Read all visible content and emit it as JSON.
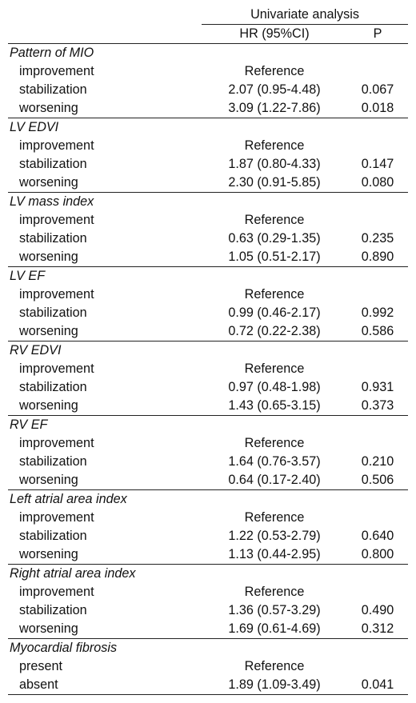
{
  "header": {
    "span_title": "Univariate analysis",
    "col_hr": "HR (95%CI)",
    "col_p": "P"
  },
  "groups": [
    {
      "name": "Pattern of MIO",
      "rows": [
        {
          "label": "improvement",
          "hr": "Reference",
          "p": ""
        },
        {
          "label": "stabilization",
          "hr": "2.07 (0.95-4.48)",
          "p": "0.067"
        },
        {
          "label": "worsening",
          "hr": "3.09 (1.22-7.86)",
          "p": "0.018"
        }
      ]
    },
    {
      "name": "LV EDVI",
      "rows": [
        {
          "label": "improvement",
          "hr": "Reference",
          "p": ""
        },
        {
          "label": "stabilization",
          "hr": "1.87 (0.80-4.33)",
          "p": "0.147"
        },
        {
          "label": "worsening",
          "hr": "2.30 (0.91-5.85)",
          "p": "0.080"
        }
      ]
    },
    {
      "name": "LV mass index",
      "rows": [
        {
          "label": "improvement",
          "hr": "Reference",
          "p": ""
        },
        {
          "label": "stabilization",
          "hr": "0.63 (0.29-1.35)",
          "p": "0.235"
        },
        {
          "label": "worsening",
          "hr": "1.05 (0.51-2.17)",
          "p": "0.890"
        }
      ]
    },
    {
      "name": "LV EF",
      "rows": [
        {
          "label": "improvement",
          "hr": "Reference",
          "p": ""
        },
        {
          "label": "stabilization",
          "hr": "0.99 (0.46-2.17)",
          "p": "0.992"
        },
        {
          "label": "worsening",
          "hr": "0.72 (0.22-2.38)",
          "p": "0.586"
        }
      ]
    },
    {
      "name": "RV EDVI",
      "rows": [
        {
          "label": "improvement",
          "hr": "Reference",
          "p": ""
        },
        {
          "label": "stabilization",
          "hr": "0.97 (0.48-1.98)",
          "p": "0.931"
        },
        {
          "label": "worsening",
          "hr": "1.43 (0.65-3.15)",
          "p": "0.373"
        }
      ]
    },
    {
      "name": "RV  EF",
      "rows": [
        {
          "label": "improvement",
          "hr": "Reference",
          "p": ""
        },
        {
          "label": "stabilization",
          "hr": "1.64 (0.76-3.57)",
          "p": "0.210"
        },
        {
          "label": "worsening",
          "hr": "0.64 (0.17-2.40)",
          "p": "0.506"
        }
      ]
    },
    {
      "name": "Left atrial area index",
      "rows": [
        {
          "label": "improvement",
          "hr": "Reference",
          "p": ""
        },
        {
          "label": "stabilization",
          "hr": "1.22 (0.53-2.79)",
          "p": "0.640"
        },
        {
          "label": "worsening",
          "hr": "1.13 (0.44-2.95)",
          "p": "0.800"
        }
      ]
    },
    {
      "name": "Right atrial area index",
      "rows": [
        {
          "label": "improvement",
          "hr": "Reference",
          "p": ""
        },
        {
          "label": "stabilization",
          "hr": "1.36 (0.57-3.29)",
          "p": "0.490"
        },
        {
          "label": "worsening",
          "hr": "1.69 (0.61-4.69)",
          "p": "0.312"
        }
      ]
    },
    {
      "name": "Myocardial fibrosis",
      "rows": [
        {
          "label": "present",
          "hr": "Reference",
          "p": ""
        },
        {
          "label": "absent",
          "hr": "1.89 (1.09-3.49)",
          "p": "0.041"
        }
      ]
    }
  ]
}
